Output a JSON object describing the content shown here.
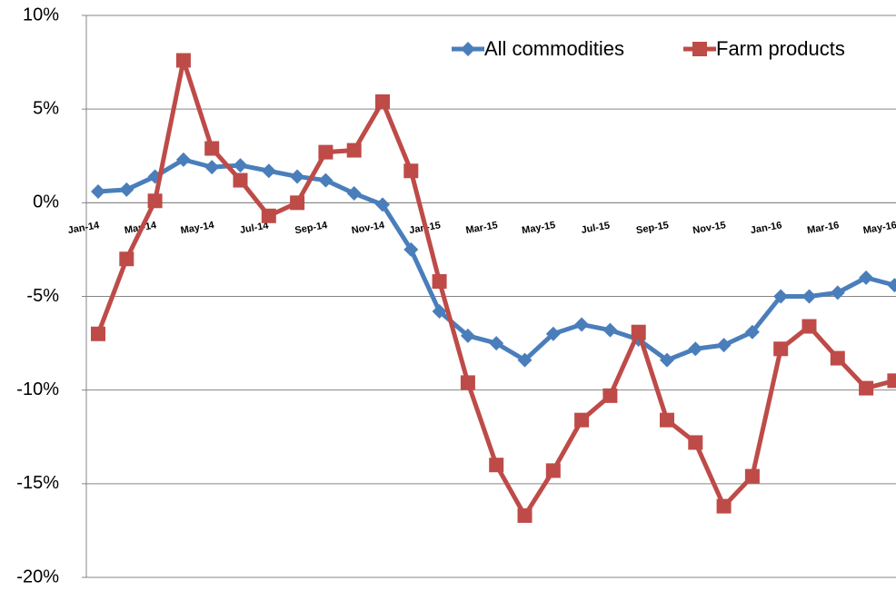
{
  "chart_data": {
    "type": "line",
    "categories": [
      "Jan-14",
      null,
      "Mar-14",
      null,
      "May-14",
      null,
      "Jul-14",
      null,
      "Sep-14",
      null,
      "Nov-14",
      null,
      "Jan-15",
      null,
      "Mar-15",
      null,
      "May-15",
      null,
      "Jul-15",
      null,
      "Sep-15",
      null,
      "Nov-15",
      null,
      "Jan-16",
      null,
      "Mar-16",
      null,
      "May-16"
    ],
    "series": [
      {
        "name": "All commodities",
        "color": "#4a7ebb",
        "marker": "diamond",
        "values": [
          0.6,
          0.7,
          1.4,
          2.3,
          1.9,
          2.0,
          1.7,
          1.4,
          1.2,
          0.5,
          -0.1,
          -2.5,
          -5.8,
          -7.1,
          -7.5,
          -8.4,
          -7.0,
          -6.5,
          -6.8,
          -7.3,
          -8.4,
          -7.8,
          -7.6,
          -6.9,
          -5.0,
          -5.0,
          -4.8,
          -4.0,
          -4.4
        ]
      },
      {
        "name": "Farm products",
        "color": "#be4b48",
        "marker": "square",
        "values": [
          -7.0,
          -3.0,
          0.1,
          7.6,
          2.9,
          1.2,
          -0.7,
          0.0,
          2.7,
          2.8,
          5.4,
          1.7,
          -4.2,
          -9.6,
          -14.0,
          -16.7,
          -14.3,
          -11.6,
          -10.3,
          -6.9,
          -11.6,
          -12.8,
          -16.2,
          -14.6,
          -7.8,
          -6.6,
          -8.3,
          -9.9,
          -9.5
        ]
      }
    ],
    "ylim": [
      -20,
      10
    ],
    "yticks": [
      {
        "value": -20,
        "label": "-20%"
      },
      {
        "value": -15,
        "label": "-15%"
      },
      {
        "value": -10,
        "label": "-10%"
      },
      {
        "value": -5,
        "label": "-5%"
      },
      {
        "value": 0,
        "label": "0%"
      },
      {
        "value": 5,
        "label": "5%"
      },
      {
        "value": 10,
        "label": "10%"
      }
    ],
    "grid": true,
    "legend": "top-right"
  }
}
